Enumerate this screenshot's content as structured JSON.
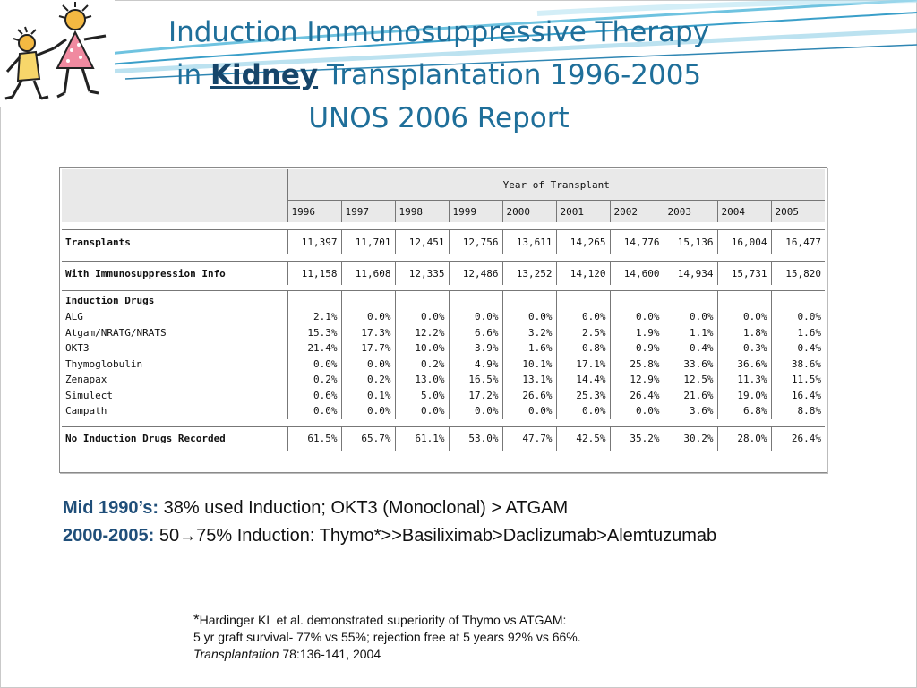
{
  "title": {
    "line1": "Induction Immunosuppressive Therapy",
    "line2_pre": "in ",
    "line2_kidney": "Kidney",
    "line2_post": " Transplantation 1996-2005",
    "line3": "UNOS 2006 Report"
  },
  "table": {
    "super_header": "Year of Transplant",
    "years": [
      "1996",
      "1997",
      "1998",
      "1999",
      "2000",
      "2001",
      "2002",
      "2003",
      "2004",
      "2005"
    ],
    "transplants": {
      "label": "Transplants",
      "values": [
        "11,397",
        "11,701",
        "12,451",
        "12,756",
        "13,611",
        "14,265",
        "14,776",
        "15,136",
        "16,004",
        "16,477"
      ]
    },
    "immuno_info": {
      "label": "With Immunosuppression Info",
      "values": [
        "11,158",
        "11,608",
        "12,335",
        "12,486",
        "13,252",
        "14,120",
        "14,600",
        "14,934",
        "15,731",
        "15,820"
      ]
    },
    "induction_header": "Induction Drugs",
    "drugs": [
      {
        "name": "ALG",
        "values": [
          "2.1%",
          "0.0%",
          "0.0%",
          "0.0%",
          "0.0%",
          "0.0%",
          "0.0%",
          "0.0%",
          "0.0%",
          "0.0%"
        ]
      },
      {
        "name": "Atgam/NRATG/NRATS",
        "values": [
          "15.3%",
          "17.3%",
          "12.2%",
          "6.6%",
          "3.2%",
          "2.5%",
          "1.9%",
          "1.1%",
          "1.8%",
          "1.6%"
        ]
      },
      {
        "name": "OKT3",
        "values": [
          "21.4%",
          "17.7%",
          "10.0%",
          "3.9%",
          "1.6%",
          "0.8%",
          "0.9%",
          "0.4%",
          "0.3%",
          "0.4%"
        ]
      },
      {
        "name": "Thymoglobulin",
        "values": [
          "0.0%",
          "0.0%",
          "0.2%",
          "4.9%",
          "10.1%",
          "17.1%",
          "25.8%",
          "33.6%",
          "36.6%",
          "38.6%"
        ]
      },
      {
        "name": "Zenapax",
        "values": [
          "0.2%",
          "0.2%",
          "13.0%",
          "16.5%",
          "13.1%",
          "14.4%",
          "12.9%",
          "12.5%",
          "11.3%",
          "11.5%"
        ]
      },
      {
        "name": "Simulect",
        "values": [
          "0.6%",
          "0.1%",
          "5.0%",
          "17.2%",
          "26.6%",
          "25.3%",
          "26.4%",
          "21.6%",
          "19.0%",
          "16.4%"
        ]
      },
      {
        "name": "Campath",
        "values": [
          "0.0%",
          "0.0%",
          "0.0%",
          "0.0%",
          "0.0%",
          "0.0%",
          "0.0%",
          "3.6%",
          "6.8%",
          "8.8%"
        ]
      }
    ],
    "no_induction": {
      "label": "No Induction Drugs Recorded",
      "values": [
        "61.5%",
        "65.7%",
        "61.1%",
        "53.0%",
        "47.7%",
        "42.5%",
        "35.2%",
        "30.2%",
        "28.0%",
        "26.4%"
      ]
    }
  },
  "notes": {
    "line1_label": "Mid 1990’s:",
    "line1_text": " 38% used Induction; OKT3 (Monoclonal) > ATGAM",
    "line2_label": "2000-2005:",
    "line2_pre": " 50",
    "line2_arrow": "→",
    "line2_post": "75% Induction: Thymo*>>Basiliximab>Daclizumab>Alemtuzumab"
  },
  "reference": {
    "star": "*",
    "line1": "Hardinger KL et al. demonstrated superiority of Thymo vs ATGAM:",
    "line2": "5 yr graft survival- 77% vs 55%; rejection free at 5 years 92% vs 66%.",
    "journal": "Transplantation",
    "citation": " 78:136-141, 2004"
  },
  "colors": {
    "title": "#1f6f9a",
    "label": "#1f4e79",
    "swoosh": "#3a9fc9"
  }
}
